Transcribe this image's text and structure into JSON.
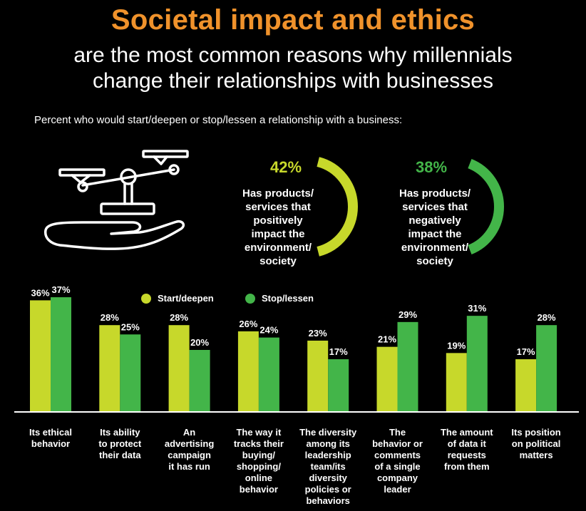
{
  "title": "Societal impact and ethics",
  "subtitle_line1": "are the most common reasons why millennials",
  "subtitle_line2": "change their relationships with businesses",
  "intro": "Percent who would start/deepen or stop/lessen a relationship with a business:",
  "stats": [
    {
      "value": "42%",
      "fraction": 0.42,
      "lines": [
        "Has products/",
        "services that",
        "positively",
        "impact the",
        "environment/",
        "society"
      ],
      "color": "#c7d82b"
    },
    {
      "value": "38%",
      "fraction": 0.38,
      "lines": [
        "Has products/",
        "services that",
        "negatively",
        "impact the",
        "environment/",
        "society"
      ],
      "color": "#43b549"
    }
  ],
  "icons": {
    "scale": "scale-in-hand-icon"
  },
  "colors": {
    "start": "#c7d82b",
    "stop": "#43b549",
    "accent": "#f0922b"
  },
  "chart_data": {
    "type": "bar",
    "categories": [
      "Its ethical behavior",
      "Its ability to protect their data",
      "An advertising campaign it has run",
      "The way it tracks their buying/ shopping/ online behavior",
      "The diversity among its leadership team/its diversity policies or behaviors",
      "The behavior or comments of a single company leader",
      "The amount of data it requests from them",
      "Its position on political matters"
    ],
    "category_lines": [
      [
        "Its ethical",
        "behavior"
      ],
      [
        "Its ability",
        "to protect",
        "their data"
      ],
      [
        "An",
        "advertising",
        "campaign",
        "it has run"
      ],
      [
        "The way it",
        "tracks their",
        "buying/",
        "shopping/",
        "online",
        "behavior"
      ],
      [
        "The diversity",
        "among its",
        "leadership",
        "team/its",
        "diversity",
        "policies or",
        "behaviors"
      ],
      [
        "The",
        "behavior or",
        "comments",
        "of a single",
        "company",
        "leader"
      ],
      [
        "The amount",
        "of data it",
        "requests",
        "from them"
      ],
      [
        "Its position",
        "on political",
        "matters"
      ]
    ],
    "series": [
      {
        "name": "Start/deepen",
        "values": [
          36,
          28,
          28,
          26,
          23,
          21,
          19,
          17
        ],
        "labels": [
          "36%",
          "28%",
          "28%",
          "26%",
          "23%",
          "21%",
          "19%",
          "17%"
        ]
      },
      {
        "name": "Stop/lessen",
        "values": [
          37,
          25,
          20,
          24,
          17,
          29,
          31,
          28
        ],
        "labels": [
          "37%",
          "25%",
          "20%",
          "24%",
          "17%",
          "29%",
          "31%",
          "28%"
        ]
      }
    ],
    "ylim": [
      0,
      40
    ],
    "legend": "top-center",
    "grid": false
  }
}
